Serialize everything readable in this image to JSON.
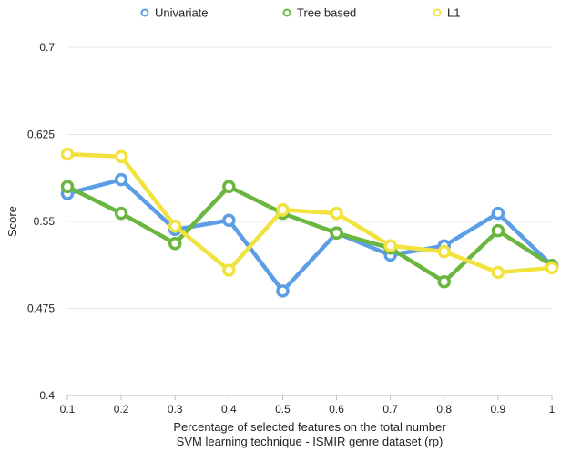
{
  "chart_data": {
    "type": "line",
    "title": "",
    "xlabel": "Percentage of selected features on the total number",
    "subtitle": "SVM learning technique - ISMIR genre dataset (rp)",
    "ylabel": "Score",
    "x": [
      0.1,
      0.2,
      0.3,
      0.4,
      0.5,
      0.6,
      0.7,
      0.8,
      0.9,
      1
    ],
    "x_tick_labels": [
      "0.1",
      "0.2",
      "0.3",
      "0.4",
      "0.5",
      "0.6",
      "0.7",
      "0.8",
      "0.9",
      "1"
    ],
    "y_ticks": [
      0.4,
      0.475,
      0.55,
      0.625,
      0.7
    ],
    "y_tick_labels": [
      "0.4",
      "0.475",
      "0.55",
      "0.625",
      "0.7"
    ],
    "ylim": [
      0.4,
      0.7
    ],
    "grid": "horizontal",
    "legend_position": "top",
    "series": [
      {
        "name": "Univariate",
        "color": "#5b9ee6",
        "values": [
          0.574,
          0.586,
          0.543,
          0.551,
          0.49,
          0.54,
          0.521,
          0.529,
          0.557,
          0.512
        ]
      },
      {
        "name": "Tree based",
        "color": "#6ab63f",
        "values": [
          0.58,
          0.557,
          0.531,
          0.58,
          0.557,
          0.54,
          0.527,
          0.498,
          0.542,
          0.512
        ]
      },
      {
        "name": "L1",
        "color": "#f2e23e",
        "values": [
          0.608,
          0.606,
          0.546,
          0.508,
          0.56,
          0.557,
          0.529,
          0.524,
          0.506,
          0.51
        ]
      }
    ]
  }
}
